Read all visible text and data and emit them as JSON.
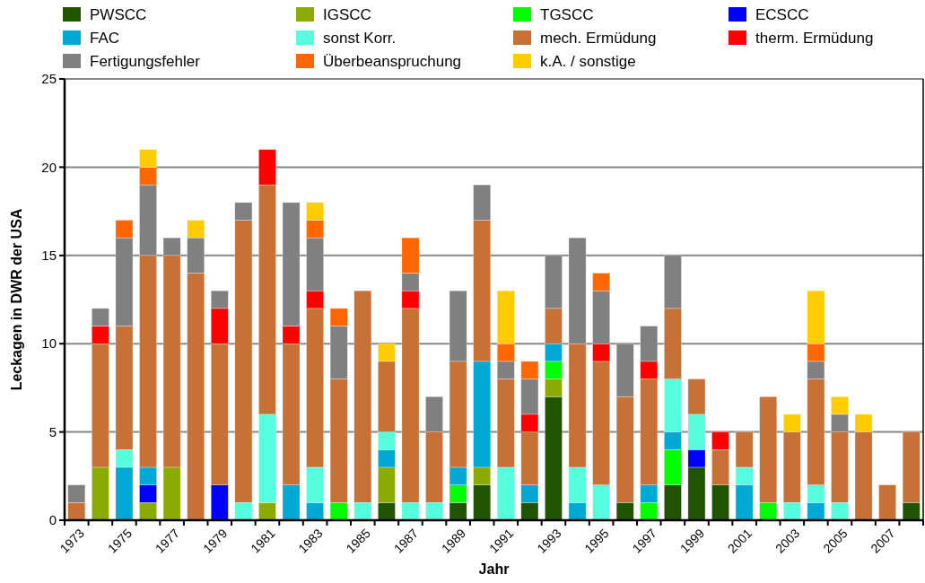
{
  "chart_data": {
    "type": "bar",
    "stacked": true,
    "xlabel": "Jahr",
    "ylabel": "Leckagen in DWR der USA",
    "categories": [
      "1973",
      null,
      "1975",
      null,
      "1977",
      null,
      "1979",
      null,
      "1981",
      null,
      "1983",
      null,
      "1985",
      null,
      "1987",
      null,
      "1989",
      null,
      "1991",
      null,
      "1993",
      null,
      "1995",
      null,
      "1997",
      null,
      "1999",
      null,
      "2001",
      null,
      "2003",
      null,
      "2005",
      null,
      "2007",
      null
    ],
    "ylim": [
      0,
      25
    ],
    "yticks": [
      0,
      5,
      10,
      15,
      20,
      25
    ],
    "grid": "y",
    "legend": "top",
    "series": [
      {
        "name": "PWSCC",
        "color": "#215400",
        "values": [
          0,
          0,
          0,
          0,
          0,
          0,
          0,
          0,
          0,
          0,
          0,
          0,
          0,
          1,
          0,
          0,
          1,
          2,
          0,
          1,
          7,
          0,
          0,
          1,
          0,
          2,
          3,
          2,
          0,
          0,
          0,
          0,
          0,
          0,
          0,
          1
        ]
      },
      {
        "name": "IGSCC",
        "color": "#8cab00",
        "values": [
          0,
          3,
          0,
          1,
          3,
          0,
          0,
          0,
          1,
          0,
          0,
          0,
          0,
          2,
          0,
          0,
          0,
          1,
          0,
          0,
          1,
          0,
          0,
          0,
          0,
          0,
          0,
          0,
          0,
          0,
          0,
          0,
          0,
          0,
          0,
          0
        ]
      },
      {
        "name": "TGSCC",
        "color": "#00ff00",
        "values": [
          0,
          0,
          0,
          0,
          0,
          0,
          0,
          0,
          0,
          0,
          0,
          1,
          0,
          0,
          0,
          0,
          1,
          0,
          0,
          0,
          1,
          0,
          0,
          0,
          1,
          2,
          0,
          0,
          0,
          1,
          0,
          0,
          0,
          0,
          0,
          0
        ]
      },
      {
        "name": "ECSCC",
        "color": "#0000ff",
        "values": [
          0,
          0,
          0,
          1,
          0,
          0,
          2,
          0,
          0,
          0,
          0,
          0,
          0,
          0,
          0,
          0,
          0,
          0,
          0,
          0,
          0,
          0,
          0,
          0,
          0,
          0,
          1,
          0,
          0,
          0,
          0,
          0,
          0,
          0,
          0,
          0
        ]
      },
      {
        "name": "FAC",
        "color": "#00a9d4",
        "values": [
          0,
          0,
          3,
          1,
          0,
          0,
          0,
          0,
          0,
          2,
          1,
          0,
          0,
          1,
          0,
          0,
          1,
          6,
          0,
          1,
          1,
          1,
          0,
          0,
          1,
          1,
          0,
          0,
          2,
          0,
          0,
          1,
          0,
          0,
          0,
          0
        ]
      },
      {
        "name": "sonst Korr.",
        "color": "#55ffdd",
        "values": [
          0,
          0,
          1,
          0,
          0,
          0,
          0,
          1,
          5,
          0,
          2,
          0,
          1,
          1,
          1,
          1,
          0,
          0,
          3,
          0,
          0,
          2,
          2,
          0,
          0,
          3,
          2,
          0,
          1,
          0,
          1,
          1,
          1,
          0,
          0,
          0
        ]
      },
      {
        "name": "mech. Ermüdung",
        "color": "#c87137",
        "values": [
          1,
          7,
          7,
          12,
          12,
          14,
          8,
          16,
          13,
          8,
          9,
          7,
          12,
          4,
          11,
          4,
          6,
          8,
          5,
          3,
          2,
          7,
          7,
          6,
          6,
          4,
          2,
          2,
          2,
          6,
          4,
          6,
          4,
          5,
          2,
          4
        ]
      },
      {
        "name": "therm. Ermüdung",
        "color": "#ff0000",
        "values": [
          0,
          1,
          0,
          0,
          0,
          0,
          2,
          0,
          2,
          1,
          1,
          0,
          0,
          0,
          1,
          0,
          0,
          0,
          0,
          1,
          0,
          0,
          1,
          0,
          1,
          0,
          0,
          1,
          0,
          0,
          0,
          0,
          0,
          0,
          0,
          0
        ]
      },
      {
        "name": "Fertigungsfehler",
        "color": "#808080",
        "values": [
          1,
          1,
          5,
          4,
          1,
          2,
          1,
          1,
          0,
          7,
          3,
          3,
          0,
          0,
          1,
          2,
          4,
          2,
          1,
          2,
          3,
          6,
          3,
          3,
          2,
          3,
          0,
          0,
          0,
          0,
          0,
          1,
          1,
          0,
          0,
          0
        ]
      },
      {
        "name": "Überbeanspruchung",
        "color": "#ff6600",
        "values": [
          0,
          0,
          1,
          1,
          0,
          0,
          0,
          0,
          0,
          0,
          1,
          1,
          0,
          0,
          2,
          0,
          0,
          0,
          1,
          1,
          0,
          0,
          1,
          0,
          0,
          0,
          0,
          0,
          0,
          0,
          0,
          1,
          0,
          0,
          0,
          0
        ]
      },
      {
        "name": "k.A. / sonstige",
        "color": "#ffcc00",
        "values": [
          0,
          0,
          0,
          1,
          0,
          1,
          0,
          0,
          0,
          0,
          1,
          0,
          0,
          1,
          0,
          0,
          0,
          0,
          3,
          0,
          0,
          0,
          0,
          0,
          0,
          0,
          0,
          0,
          0,
          0,
          1,
          3,
          1,
          1,
          0,
          0
        ]
      }
    ]
  }
}
